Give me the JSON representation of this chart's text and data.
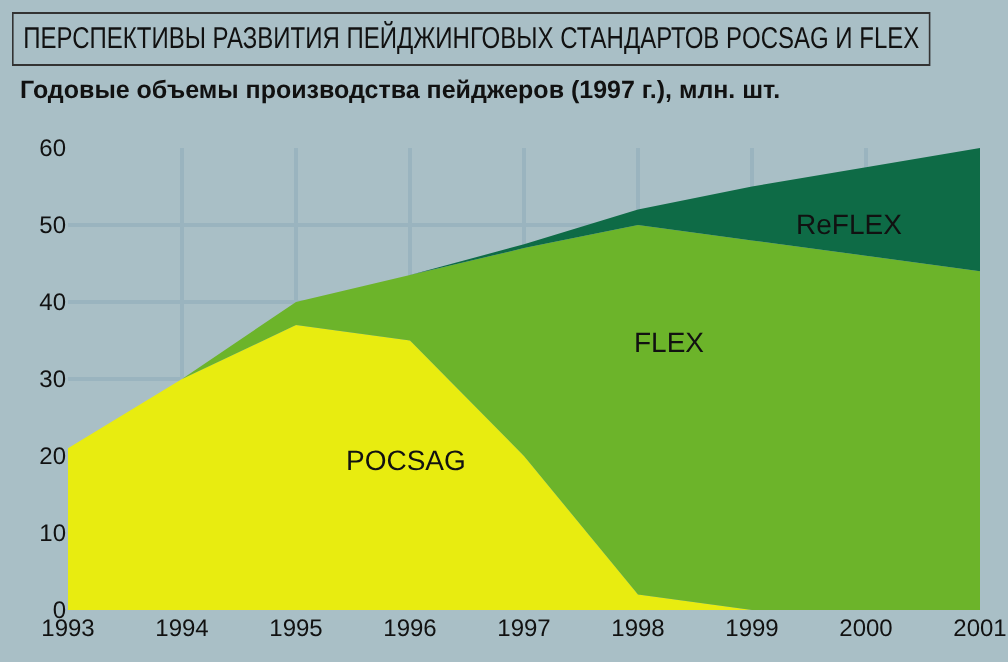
{
  "chart_data": {
    "type": "area",
    "stacked": true,
    "title": "ПЕРСПЕКТИВЫ РАЗВИТИЯ ПЕЙДЖИНГОВЫХ СТАНДАРТОВ POCSAG И FLEX",
    "subtitle": "Годовые объемы производства пейджеров (1997 г.), млн. шт.",
    "x": [
      1993,
      1994,
      1995,
      1996,
      1997,
      1998,
      1999,
      2000,
      2001
    ],
    "series": [
      {
        "name": "POCSAG",
        "color": "#e8ec10",
        "values": [
          21,
          30,
          37,
          35,
          20,
          2,
          0,
          0,
          0
        ]
      },
      {
        "name": "FLEX",
        "color": "#6cb42a",
        "values": [
          0,
          0,
          3,
          8.5,
          27,
          48,
          48,
          46,
          44
        ]
      },
      {
        "name": "ReFLEX",
        "color": "#0e6b46",
        "values": [
          0,
          0,
          0,
          0,
          0.5,
          2,
          7,
          11.5,
          16
        ]
      }
    ],
    "xlim": [
      1993,
      2001
    ],
    "xticks": [
      1993,
      1994,
      1995,
      1996,
      1997,
      1998,
      1999,
      2000,
      2001
    ],
    "ylim": [
      0,
      60
    ],
    "yticks": [
      0,
      10,
      20,
      30,
      40,
      50,
      60
    ],
    "grid": true,
    "legend": false
  }
}
